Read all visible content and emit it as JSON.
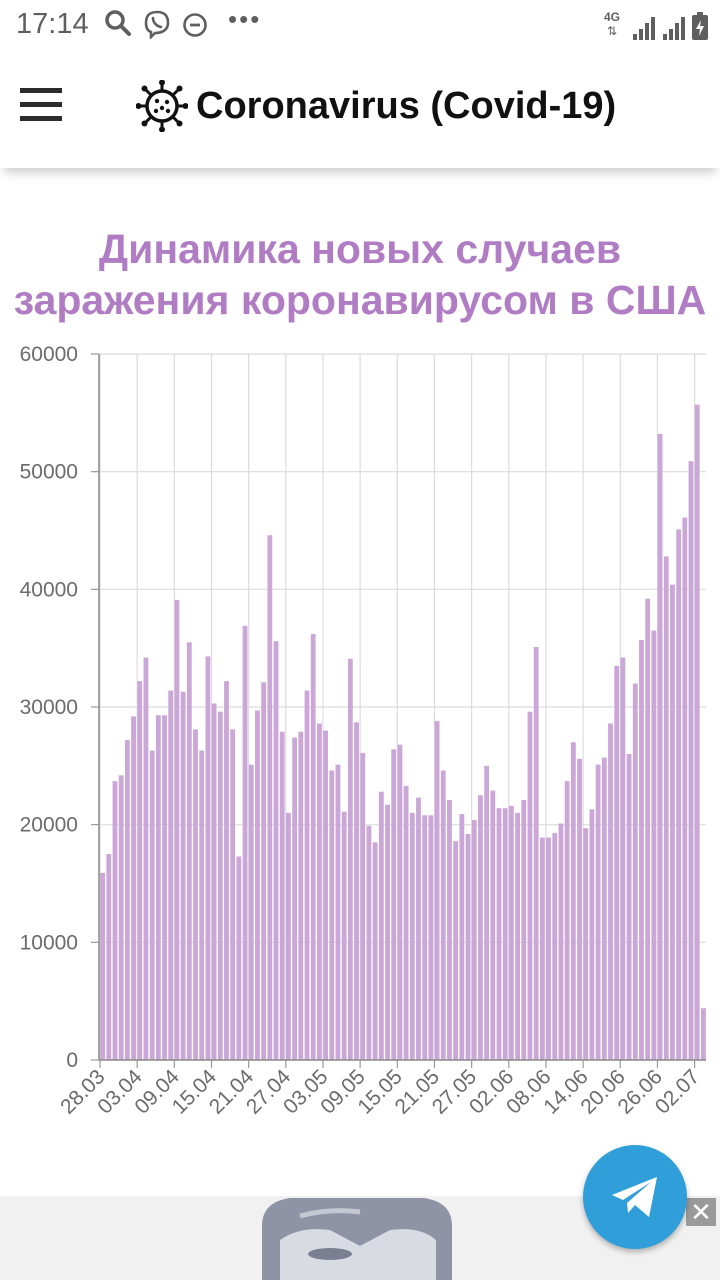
{
  "status_bar": {
    "time": "17:14",
    "network": "4G",
    "left_icons": [
      "search-icon",
      "viber-icon",
      "dnd-icon"
    ],
    "overflow": "•••"
  },
  "header": {
    "title": "Coronavirus (Covid-19)",
    "logo_icon": "virus-icon",
    "menu_icon": "hamburger-menu-icon"
  },
  "chart_data": {
    "type": "bar",
    "title_lines": [
      "Динамика новых случаев",
      "заражения коронавирусом в США"
    ],
    "xlabel": "",
    "ylabel": "",
    "ylim": [
      0,
      60000
    ],
    "yticks": [
      "0",
      "10000",
      "20000",
      "30000",
      "40000",
      "50000",
      "60000"
    ],
    "xtick_labels": [
      "28.03",
      "03.04",
      "09.04",
      "15.04",
      "21.04",
      "27.04",
      "03.05",
      "09.05",
      "15.05",
      "21.05",
      "27.05",
      "02.06",
      "08.06",
      "14.06",
      "20.06",
      "26.06",
      "02.07"
    ],
    "grid": true,
    "bar_color": "#cba7d7",
    "values": [
      15900,
      17500,
      23700,
      24200,
      27200,
      29200,
      32200,
      34200,
      26300,
      29300,
      29300,
      31400,
      39100,
      31300,
      35500,
      28100,
      26300,
      34300,
      30300,
      29600,
      32200,
      28100,
      17300,
      36900,
      25100,
      29700,
      32100,
      44600,
      35600,
      27900,
      21000,
      27400,
      27900,
      31400,
      36200,
      28600,
      28000,
      24600,
      25100,
      21100,
      34100,
      28700,
      26100,
      19900,
      18500,
      22800,
      21700,
      26400,
      26800,
      23300,
      21000,
      22300,
      20800,
      20800,
      28800,
      24600,
      22100,
      18600,
      20900,
      19200,
      20400,
      22500,
      25000,
      22900,
      21400,
      21400,
      21600,
      21000,
      22100,
      29600,
      35100,
      18900,
      18900,
      19300,
      20100,
      23700,
      27000,
      25600,
      19700,
      21300,
      25100,
      25700,
      28600,
      33500,
      34200,
      26000,
      32000,
      35700,
      39200,
      36500,
      53200,
      42800,
      40400,
      45100,
      46100,
      50900,
      55700,
      4400
    ]
  },
  "footer": {
    "ad_close_label": "✕",
    "telegram_icon": "telegram-icon",
    "accent": "#2f9ed9"
  }
}
